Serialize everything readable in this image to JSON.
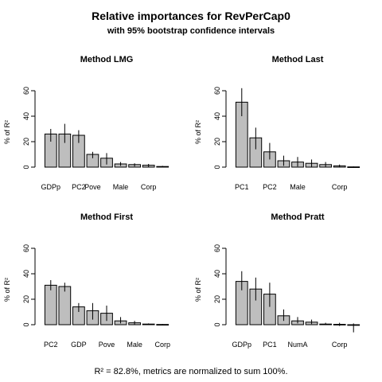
{
  "figure": {
    "title": "Relative importances for RevPerCap0",
    "subtitle": "with 95% bootstrap confidence intervals",
    "footer": "R² = 82.8%, metrics are normalized to sum 100%."
  },
  "chart_data": [
    {
      "type": "bar",
      "title": "Method LMG",
      "ylabel": "% of R²",
      "ylim": [
        0,
        70
      ],
      "yticks": [
        0,
        20,
        40,
        60
      ],
      "xtick_labels": [
        "GDPp",
        "PC2",
        "Pove",
        "Male",
        "Corp"
      ],
      "xtick_positions": [
        0,
        2,
        3,
        5,
        7
      ],
      "values": [
        26,
        26,
        25,
        10,
        7,
        2.5,
        2,
        1.5,
        0.5
      ],
      "ci_low": [
        20,
        19,
        19,
        7,
        2,
        1,
        0.5,
        0.3,
        0
      ],
      "ci_high": [
        30,
        34,
        29,
        12,
        11,
        4,
        3,
        2.5,
        1
      ]
    },
    {
      "type": "bar",
      "title": "Method Last",
      "ylabel": "% of R²",
      "ylim": [
        0,
        70
      ],
      "yticks": [
        0,
        20,
        40,
        60
      ],
      "xtick_labels": [
        "PC1",
        "PC2",
        "Male",
        "Corp"
      ],
      "xtick_positions": [
        0,
        2,
        4,
        7
      ],
      "values": [
        51,
        23,
        12,
        5,
        4,
        3,
        2,
        1,
        0.2
      ],
      "ci_low": [
        40,
        14,
        6,
        1,
        0.5,
        0.3,
        0.2,
        0.1,
        0
      ],
      "ci_high": [
        62,
        31,
        19,
        9,
        8,
        6,
        4,
        2,
        0.5
      ]
    },
    {
      "type": "bar",
      "title": "Method First",
      "ylabel": "% of R²",
      "ylim": [
        0,
        70
      ],
      "yticks": [
        0,
        20,
        40,
        60
      ],
      "xtick_labels": [
        "PC2",
        "GDP",
        "Pove",
        "Male",
        "Corp"
      ],
      "xtick_positions": [
        0,
        2,
        4,
        6,
        8
      ],
      "values": [
        31,
        30,
        14,
        11,
        9,
        3,
        1.5,
        0.5,
        0.2
      ],
      "ci_low": [
        27,
        26,
        10,
        4,
        3,
        1,
        0.3,
        0,
        0
      ],
      "ci_high": [
        35,
        33,
        17,
        17,
        15,
        6,
        3,
        1,
        0.5
      ]
    },
    {
      "type": "bar",
      "title": "Method Pratt",
      "ylabel": "% of R²",
      "ylim": [
        0,
        70
      ],
      "yticks": [
        0,
        20,
        40,
        60
      ],
      "xtick_labels": [
        "GDPp",
        "PC1",
        "NumA",
        "Corp"
      ],
      "xtick_positions": [
        0,
        2,
        4,
        7
      ],
      "values": [
        34,
        28,
        24,
        7,
        3,
        2,
        0.5,
        0.3,
        -0.5
      ],
      "ci_low": [
        27,
        19,
        14,
        3,
        1,
        0.5,
        0,
        -1,
        -6
      ],
      "ci_high": [
        42,
        37,
        33,
        12,
        6,
        4,
        1.5,
        1.5,
        1
      ]
    }
  ]
}
